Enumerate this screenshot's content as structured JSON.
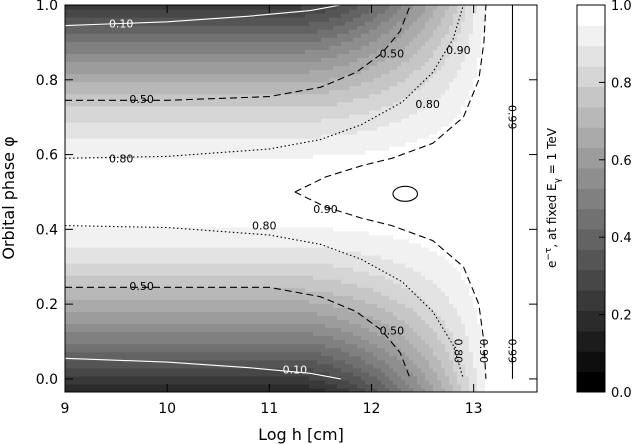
{
  "chart_data": {
    "type": "heatmap",
    "title": "",
    "xlabel": "Log h [cm]",
    "ylabel": "Orbital phase φ",
    "xlim": [
      9.0,
      13.62
    ],
    "ylim": [
      -0.035,
      1.0
    ],
    "x_ticks": [
      9,
      10,
      11,
      12,
      13
    ],
    "x_tick_labels": [
      "9",
      "10",
      "11",
      "12",
      "13"
    ],
    "y_ticks": [
      0.0,
      0.2,
      0.4,
      0.6,
      0.8,
      1.0
    ],
    "y_tick_labels": [
      "0.0",
      "0.2",
      "0.4",
      "0.6",
      "0.8",
      "1.0"
    ],
    "colormap": "gray",
    "n_levels": 19,
    "colorbar": {
      "label": "e^-τ, at fixed E_γ = 1 TeV",
      "label_parts": [
        "e",
        "−τ",
        ", at fixed E",
        "γ",
        " = 1 TeV"
      ],
      "range": [
        0.0,
        1.0
      ],
      "ticks": [
        0.0,
        0.2,
        0.4,
        0.6,
        0.8,
        1.0
      ],
      "tick_labels": [
        "0.0",
        "0.2",
        "0.4",
        "0.6",
        "0.8",
        "1.0"
      ]
    },
    "contours": [
      {
        "level": 0.1,
        "style": "solid-white",
        "upper": [
          [
            9.0,
            0.945
          ],
          [
            10.0,
            0.955
          ],
          [
            10.8,
            0.97
          ],
          [
            11.4,
            0.985
          ],
          [
            11.7,
            1.0
          ]
        ],
        "lower": [
          [
            9.0,
            0.055
          ],
          [
            10.0,
            0.045
          ],
          [
            10.8,
            0.03
          ],
          [
            11.4,
            0.015
          ],
          [
            11.7,
            0.0
          ]
        ]
      },
      {
        "level": 0.5,
        "style": "dashed",
        "upper": [
          [
            9.0,
            0.745
          ],
          [
            10.0,
            0.745
          ],
          [
            11.0,
            0.755
          ],
          [
            11.5,
            0.78
          ],
          [
            11.85,
            0.82
          ],
          [
            12.1,
            0.87
          ],
          [
            12.28,
            0.93
          ],
          [
            12.38,
            1.0
          ]
        ],
        "lower": [
          [
            9.0,
            0.245
          ],
          [
            10.0,
            0.245
          ],
          [
            11.0,
            0.245
          ],
          [
            11.5,
            0.22
          ],
          [
            11.85,
            0.18
          ],
          [
            12.1,
            0.13
          ],
          [
            12.28,
            0.07
          ],
          [
            12.38,
            0.0
          ]
        ]
      },
      {
        "level": 0.8,
        "style": "dotted",
        "upper": [
          [
            9.0,
            0.59
          ],
          [
            10.0,
            0.595
          ],
          [
            11.0,
            0.615
          ],
          [
            11.5,
            0.64
          ],
          [
            11.9,
            0.68
          ],
          [
            12.3,
            0.74
          ],
          [
            12.6,
            0.82
          ],
          [
            12.8,
            0.91
          ],
          [
            12.9,
            1.0
          ]
        ],
        "lower": [
          [
            9.0,
            0.41
          ],
          [
            10.0,
            0.405
          ],
          [
            11.0,
            0.385
          ],
          [
            11.5,
            0.36
          ],
          [
            11.9,
            0.32
          ],
          [
            12.3,
            0.26
          ],
          [
            12.6,
            0.18
          ],
          [
            12.8,
            0.09
          ],
          [
            12.9,
            0.0
          ]
        ]
      },
      {
        "level": 0.9,
        "style": "dashed",
        "upper": [
          [
            11.25,
            0.5
          ],
          [
            11.55,
            0.54
          ],
          [
            11.9,
            0.57
          ],
          [
            12.2,
            0.59
          ],
          [
            12.6,
            0.63
          ],
          [
            12.9,
            0.7
          ],
          [
            13.05,
            0.8
          ],
          [
            13.1,
            0.9
          ],
          [
            13.12,
            1.0
          ]
        ],
        "lower": [
          [
            11.25,
            0.5
          ],
          [
            11.55,
            0.46
          ],
          [
            11.9,
            0.43
          ],
          [
            12.2,
            0.41
          ],
          [
            12.6,
            0.37
          ],
          [
            12.9,
            0.3
          ],
          [
            13.05,
            0.2
          ],
          [
            13.1,
            0.1
          ],
          [
            13.12,
            0.0
          ]
        ]
      },
      {
        "level": 0.99,
        "style": "solid",
        "x": 13.38,
        "y_range": [
          0.0,
          1.0
        ]
      },
      {
        "level": 0.99,
        "style": "solid",
        "ellipse": {
          "cx": 12.33,
          "cy": 0.495,
          "rx": 0.12,
          "ry": 0.02
        }
      }
    ],
    "contour_labels": [
      {
        "text": "0.10",
        "x": 9.55,
        "y": 0.95
      },
      {
        "text": "0.10",
        "x": 11.25,
        "y": 0.025
      },
      {
        "text": "0.50",
        "x": 9.75,
        "y": 0.748
      },
      {
        "text": "0.50",
        "x": 9.75,
        "y": 0.248
      },
      {
        "text": "0.50",
        "x": 12.2,
        "y": 0.87
      },
      {
        "text": "0.50",
        "x": 12.2,
        "y": 0.13
      },
      {
        "text": "0.80",
        "x": 9.55,
        "y": 0.59
      },
      {
        "text": "0.80",
        "x": 10.95,
        "y": 0.41
      },
      {
        "text": "0.80",
        "x": 12.55,
        "y": 0.735
      },
      {
        "text": "0.80",
        "x": 12.85,
        "y": 0.075
      },
      {
        "text": "0.90",
        "x": 11.55,
        "y": 0.455
      },
      {
        "text": "0.90",
        "x": 12.85,
        "y": 0.88
      },
      {
        "text": "0.90",
        "x": 13.1,
        "y": 0.075
      },
      {
        "text": "0.99",
        "x": 13.38,
        "y": 0.075
      },
      {
        "text": "0.99",
        "x": 13.38,
        "y": 0.7
      }
    ]
  }
}
